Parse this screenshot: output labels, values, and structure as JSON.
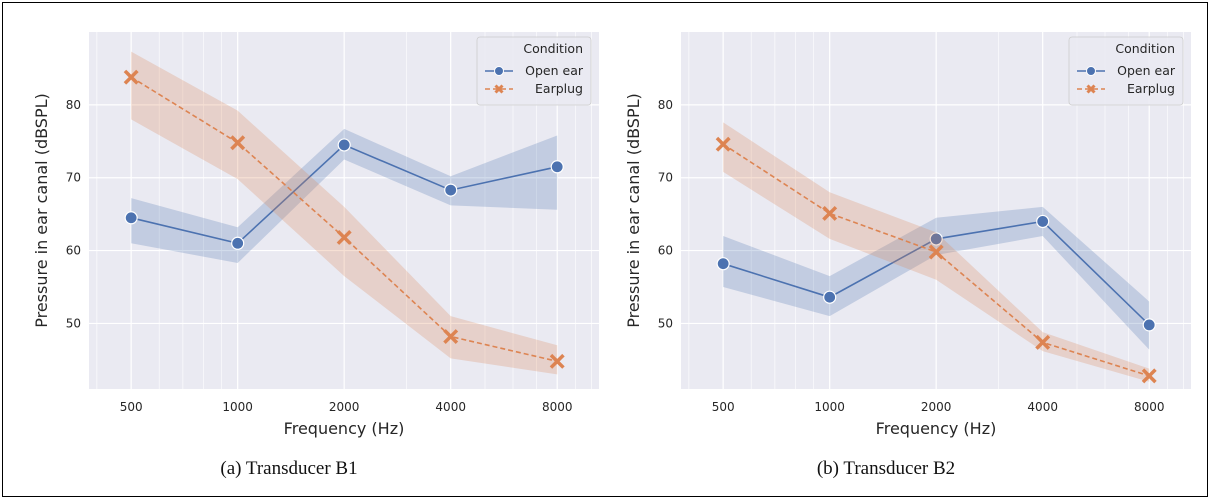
{
  "captions": [
    "(a) Transducer B1",
    "(b) Transducer B2"
  ],
  "legend": {
    "title": "Condition",
    "entries": [
      "Open ear",
      "Earplug"
    ]
  },
  "colors": {
    "open_ear": "#4c72b0",
    "earplug": "#dd8452",
    "plot_bg": "#eaeaf2",
    "grid": "#ffffff"
  },
  "chart_data": [
    {
      "type": "line",
      "title": "",
      "xlabel": "Frequency (Hz)",
      "ylabel": "Pressure in ear canal (dBSPL)",
      "x_scale": "log",
      "x": [
        500,
        1000,
        2000,
        4000,
        8000
      ],
      "x_tick_labels": [
        "500",
        "1000",
        "2000",
        "4000",
        "8000"
      ],
      "xlim": [
        380,
        10500
      ],
      "ylim": [
        41,
        90
      ],
      "y_ticks": [
        50,
        60,
        70,
        80
      ],
      "grid": true,
      "legend_position": "top-right",
      "series": [
        {
          "name": "Open ear",
          "marker": "circle",
          "values": [
            64.5,
            61.0,
            74.5,
            68.3,
            71.5
          ],
          "ci_lower": [
            61.0,
            58.3,
            72.5,
            66.2,
            65.6
          ],
          "ci_upper": [
            67.2,
            63.2,
            76.7,
            70.2,
            75.8
          ]
        },
        {
          "name": "Earplug",
          "marker": "x",
          "values": [
            83.8,
            74.8,
            61.8,
            48.2,
            44.8
          ],
          "ci_lower": [
            78.0,
            69.8,
            56.5,
            45.2,
            43.0
          ],
          "ci_upper": [
            87.3,
            79.2,
            66.0,
            51.0,
            47.0
          ]
        }
      ]
    },
    {
      "type": "line",
      "title": "",
      "xlabel": "Frequency (Hz)",
      "ylabel": "Pressure in ear canal (dBSPL)",
      "x_scale": "log",
      "x": [
        500,
        1000,
        2000,
        4000,
        8000
      ],
      "x_tick_labels": [
        "500",
        "1000",
        "2000",
        "4000",
        "8000"
      ],
      "xlim": [
        380,
        10500
      ],
      "ylim": [
        41,
        90
      ],
      "y_ticks": [
        50,
        60,
        70,
        80
      ],
      "grid": true,
      "legend_position": "top-right",
      "series": [
        {
          "name": "Open ear",
          "marker": "circle",
          "values": [
            58.2,
            53.6,
            61.6,
            64.0,
            49.8
          ],
          "ci_lower": [
            55.0,
            51.0,
            59.4,
            62.0,
            46.4
          ],
          "ci_upper": [
            62.0,
            56.5,
            64.5,
            66.0,
            53.0
          ]
        },
        {
          "name": "Earplug",
          "marker": "x",
          "values": [
            74.6,
            65.1,
            59.8,
            47.4,
            42.8
          ],
          "ci_lower": [
            70.8,
            61.6,
            56.0,
            46.2,
            42.0
          ],
          "ci_upper": [
            77.6,
            68.0,
            62.5,
            48.8,
            43.8
          ]
        }
      ]
    }
  ]
}
